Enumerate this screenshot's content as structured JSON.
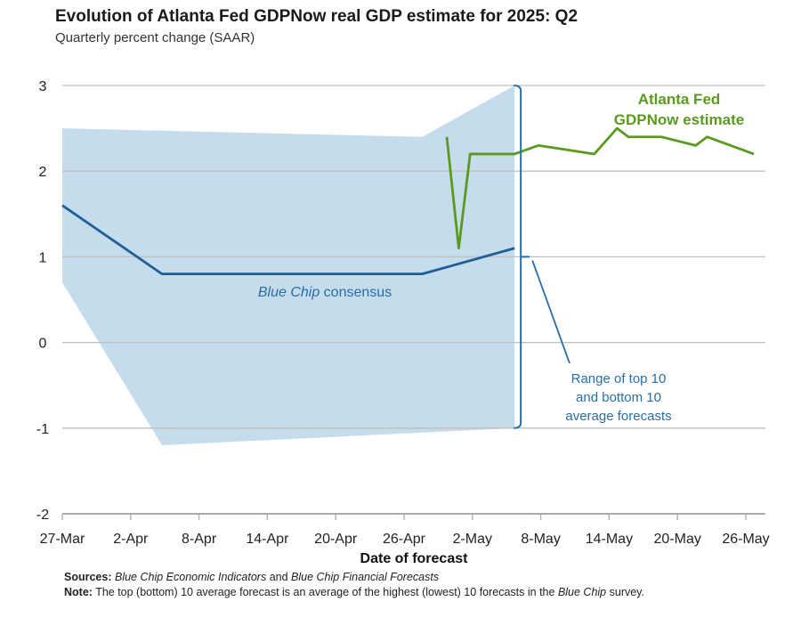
{
  "title": "Evolution of Atlanta Fed GDPNow real GDP estimate for 2025: Q2",
  "subtitle": "Quarterly percent change (SAAR)",
  "sources_label": "Sources:",
  "sources_text1": "Blue Chip Economic Indicators",
  "sources_and": " and ",
  "sources_text2": "Blue Chip Financial Forecasts",
  "note_label": "Note:",
  "note_text": " The top (bottom) 10 average forecast is an average of the highest (lowest) 10 forecasts in the ",
  "note_italic": "Blue Chip",
  "note_end": " survey.",
  "colors": {
    "band": "#c5dcec",
    "consensus": "#1f5f96",
    "gdpnow": "#5a9a1e",
    "grid": "#bfbfbf",
    "annot": "#2a6ea6"
  },
  "chart_data": {
    "type": "line",
    "title": "Evolution of Atlanta Fed GDPNow real GDP estimate for 2025: Q2",
    "xlabel": "Date of forecast",
    "ylabel": "Quarterly percent change (SAAR)",
    "x_unit": "days since 27-Mar",
    "xlim": [
      0,
      61.7
    ],
    "ylim": [
      -2,
      3
    ],
    "yticks": [
      3,
      2,
      1,
      0,
      -1,
      -2
    ],
    "xticks": [
      {
        "day": 0,
        "label": "27-Mar"
      },
      {
        "day": 6,
        "label": "2-Apr"
      },
      {
        "day": 12,
        "label": "8-Apr"
      },
      {
        "day": 18,
        "label": "14-Apr"
      },
      {
        "day": 24,
        "label": "20-Apr"
      },
      {
        "day": 30,
        "label": "26-Apr"
      },
      {
        "day": 36,
        "label": "2-May"
      },
      {
        "day": 42,
        "label": "8-May"
      },
      {
        "day": 48,
        "label": "14-May"
      },
      {
        "day": 54,
        "label": "20-May"
      },
      {
        "day": 60,
        "label": "26-May"
      }
    ],
    "grid": true,
    "band": {
      "name": "Range of top 10 and bottom 10 average forecasts",
      "upper": [
        [
          0,
          2.5
        ],
        [
          31.6,
          2.4
        ],
        [
          39.7,
          3.0
        ]
      ],
      "lower": [
        [
          0,
          0.7
        ],
        [
          8.75,
          -1.2
        ],
        [
          39.7,
          -1.0
        ]
      ]
    },
    "series": [
      {
        "name": "Blue Chip consensus",
        "points": [
          [
            0,
            1.6
          ],
          [
            8.75,
            0.8
          ],
          [
            31.6,
            0.8
          ],
          [
            39.7,
            1.1
          ]
        ]
      },
      {
        "name": "Atlanta Fed GDPNow estimate",
        "points": [
          [
            33.75,
            2.4
          ],
          [
            34.8,
            1.1
          ],
          [
            35.8,
            2.2
          ],
          [
            39.7,
            2.2
          ],
          [
            41.8,
            2.3
          ],
          [
            46.7,
            2.2
          ],
          [
            48.7,
            2.5
          ],
          [
            49.7,
            2.4
          ],
          [
            52.6,
            2.4
          ],
          [
            55.6,
            2.3
          ],
          [
            56.6,
            2.4
          ],
          [
            60.7,
            2.2
          ]
        ]
      }
    ],
    "annotations": {
      "gdpnow": [
        "Atlanta Fed",
        "GDPNow estimate"
      ],
      "consensus_italic": "Blue Chip",
      "consensus_rest": " consensus",
      "range": [
        "Range of top 10",
        "and bottom 10",
        "average forecasts"
      ]
    }
  }
}
